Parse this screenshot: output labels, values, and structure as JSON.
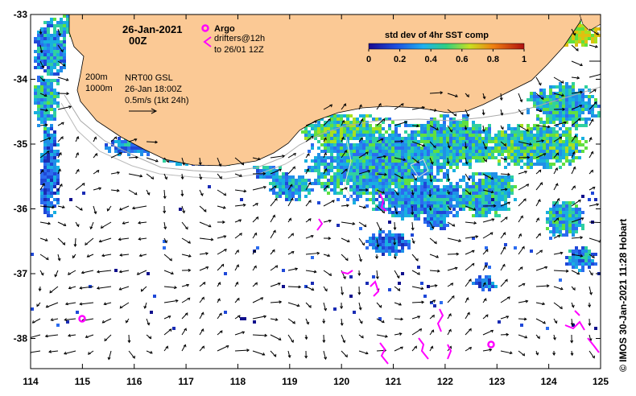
{
  "date_label": "26-Jan-2021",
  "time_label": "00Z",
  "legend": {
    "argo_label": "Argo",
    "drifters_label_line1": "drifters@12h",
    "drifters_label_line2": "to 26/01 12Z",
    "argo_color": "#ff00ff"
  },
  "colorbar": {
    "title": "std dev of 4hr SST comp",
    "ticks": [
      "0",
      "0.2",
      "0.4",
      "0.6",
      "0.8",
      "1"
    ]
  },
  "contours": {
    "label_200": "200m",
    "label_1000": "1000m"
  },
  "currents": {
    "line1": "NRT00 GSL",
    "line2": "26-Jan 18:00Z",
    "line3": "0.5m/s (1kt 24h)"
  },
  "axes": {
    "x_ticks": [
      "114",
      "115",
      "116",
      "117",
      "118",
      "119",
      "120",
      "121",
      "122",
      "123",
      "124",
      "125"
    ],
    "y_ticks": [
      "-33",
      "-34",
      "-35",
      "-36",
      "-37",
      "-38"
    ]
  },
  "credit": "© IMOS 30-Jan-2021 11:28 Hobart",
  "colors": {
    "land": "#fbc995",
    "sst_low": "#1820a0",
    "sst_mid": "#28d070",
    "sst_high": "#e02010"
  }
}
